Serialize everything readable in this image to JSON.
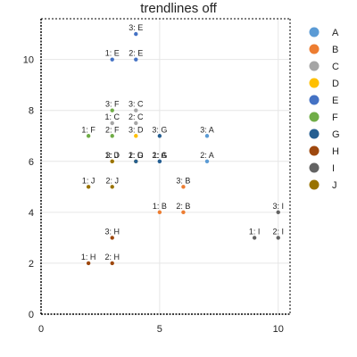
{
  "chart_data": {
    "type": "scatter",
    "title": "trendlines off",
    "xlabel": "",
    "ylabel": "",
    "xlim": [
      0,
      10.5
    ],
    "ylim": [
      0,
      11.6
    ],
    "x_ticks": [
      0,
      5,
      10
    ],
    "y_ticks": [
      0,
      2,
      4,
      6,
      8,
      10
    ],
    "grid": true,
    "legend_position": "right",
    "series": [
      {
        "name": "A",
        "color": "#5b9bd5",
        "points": [
          {
            "x": 5,
            "y": 6,
            "label": "1: A"
          },
          {
            "x": 7,
            "y": 6,
            "label": "2: A"
          },
          {
            "x": 7,
            "y": 7,
            "label": "3: A"
          }
        ]
      },
      {
        "name": "B",
        "color": "#ed7d31",
        "points": [
          {
            "x": 5,
            "y": 4,
            "label": "1: B"
          },
          {
            "x": 6,
            "y": 4,
            "label": "2: B"
          },
          {
            "x": 6,
            "y": 5,
            "label": "3: B"
          }
        ]
      },
      {
        "name": "C",
        "color": "#a5a5a5",
        "points": [
          {
            "x": 3,
            "y": 7.5,
            "label": "1: C"
          },
          {
            "x": 4,
            "y": 7.5,
            "label": "2: C"
          },
          {
            "x": 4,
            "y": 8,
            "label": "3: C"
          }
        ]
      },
      {
        "name": "D",
        "color": "#ffc000",
        "points": [
          {
            "x": 3,
            "y": 6,
            "label": "1: D"
          },
          {
            "x": 4,
            "y": 6,
            "label": "2: D"
          },
          {
            "x": 4,
            "y": 7,
            "label": "3: D"
          }
        ]
      },
      {
        "name": "E",
        "color": "#4472c4",
        "points": [
          {
            "x": 3,
            "y": 10,
            "label": "1: E"
          },
          {
            "x": 4,
            "y": 10,
            "label": "2: E"
          },
          {
            "x": 4,
            "y": 11,
            "label": "3: E"
          }
        ]
      },
      {
        "name": "F",
        "color": "#70ad47",
        "points": [
          {
            "x": 2,
            "y": 7,
            "label": "1: F"
          },
          {
            "x": 3,
            "y": 7,
            "label": "2: F"
          },
          {
            "x": 3,
            "y": 8,
            "label": "3: F"
          }
        ]
      },
      {
        "name": "G",
        "color": "#255e91",
        "points": [
          {
            "x": 4,
            "y": 6,
            "label": "1: G"
          },
          {
            "x": 5,
            "y": 6,
            "label": "2: G"
          },
          {
            "x": 5,
            "y": 7,
            "label": "3: G"
          }
        ]
      },
      {
        "name": "H",
        "color": "#9e480e",
        "points": [
          {
            "x": 2,
            "y": 2,
            "label": "1: H"
          },
          {
            "x": 3,
            "y": 2,
            "label": "2: H"
          },
          {
            "x": 3,
            "y": 3,
            "label": "3: H"
          }
        ]
      },
      {
        "name": "I",
        "color": "#636363",
        "points": [
          {
            "x": 9,
            "y": 3,
            "label": "1: I"
          },
          {
            "x": 10,
            "y": 3,
            "label": "2: I"
          },
          {
            "x": 10,
            "y": 4,
            "label": "3: I"
          }
        ]
      },
      {
        "name": "J",
        "color": "#997300",
        "points": [
          {
            "x": 2,
            "y": 5,
            "label": "1: J"
          },
          {
            "x": 3,
            "y": 5,
            "label": "2: J"
          },
          {
            "x": 3,
            "y": 6,
            "label": "3: J"
          }
        ]
      }
    ]
  }
}
